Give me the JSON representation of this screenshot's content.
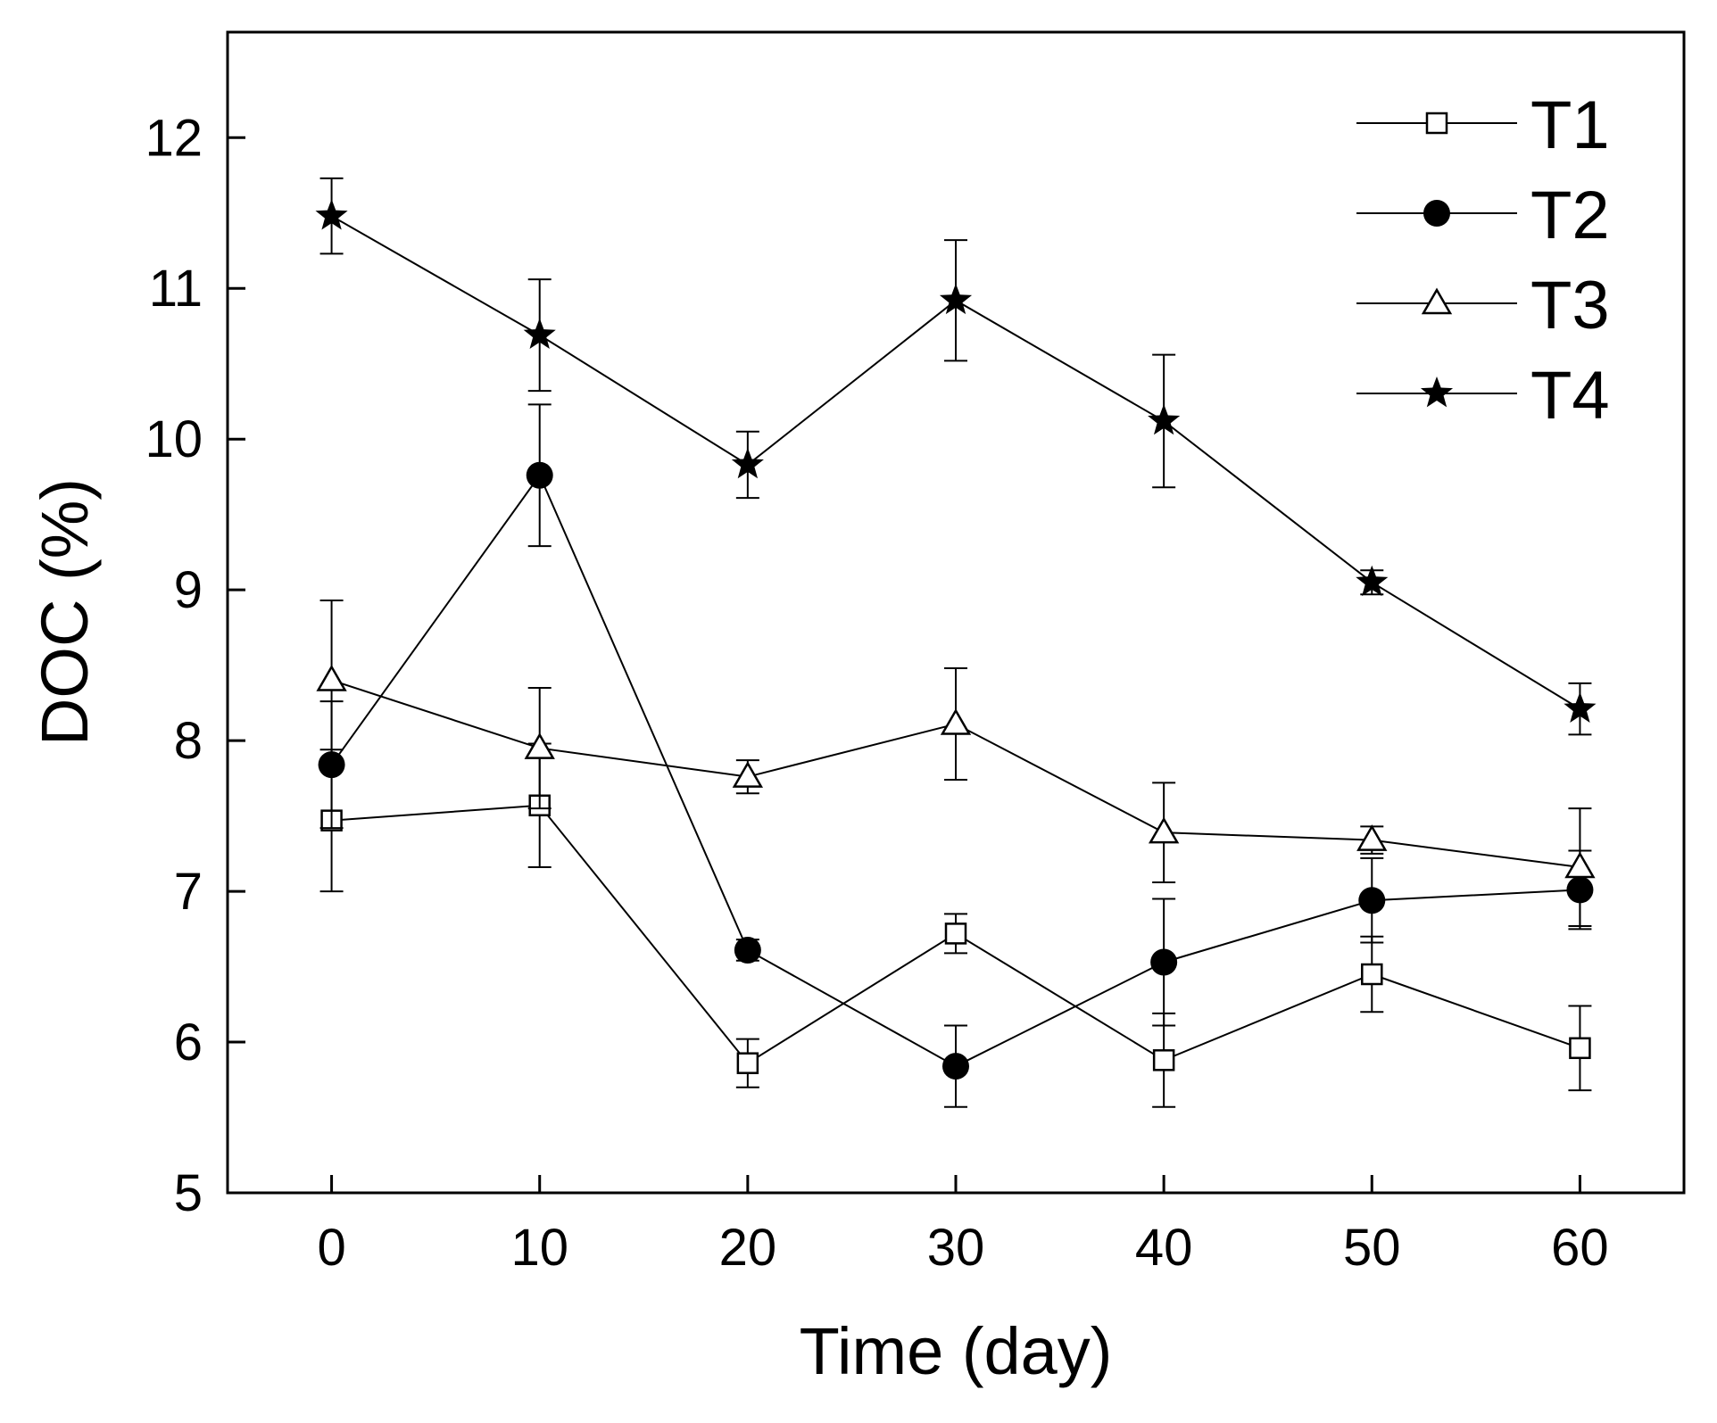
{
  "chart_data": {
    "type": "line",
    "title": "",
    "xlabel": "Time (day)",
    "ylabel": "DOC (%)",
    "x": [
      0,
      10,
      20,
      30,
      40,
      50,
      60
    ],
    "xlim": [
      -5,
      65
    ],
    "ylim": [
      5,
      12.7
    ],
    "xticks": [
      0,
      10,
      20,
      30,
      40,
      50,
      60
    ],
    "xtick_labels": [
      "0",
      "10",
      "20",
      "30",
      "40",
      "50",
      "60"
    ],
    "yticks": [
      5,
      6,
      7,
      8,
      9,
      10,
      11,
      12
    ],
    "ytick_labels": [
      "5",
      "6",
      "7",
      "8",
      "9",
      "10",
      "11",
      "12"
    ],
    "grid": false,
    "legend_position": "top-right",
    "series": [
      {
        "name": "T1",
        "marker": "open-square",
        "values": [
          7.47,
          7.57,
          5.86,
          6.72,
          5.88,
          6.45,
          5.96
        ],
        "errors": [
          0.47,
          0.41,
          0.16,
          0.13,
          0.31,
          0.25,
          0.28
        ]
      },
      {
        "name": "T2",
        "marker": "filled-circle",
        "values": [
          7.84,
          9.76,
          6.61,
          5.84,
          6.53,
          6.94,
          7.01
        ],
        "errors": [
          0.42,
          0.47,
          0.07,
          0.27,
          0.42,
          0.28,
          0.26
        ]
      },
      {
        "name": "T3",
        "marker": "open-triangle",
        "values": [
          8.4,
          7.95,
          7.76,
          8.11,
          7.39,
          7.34,
          7.16
        ],
        "errors": [
          0.53,
          0.4,
          0.11,
          0.37,
          0.33,
          0.09,
          0.39
        ]
      },
      {
        "name": "T4",
        "marker": "filled-star",
        "values": [
          11.48,
          10.69,
          9.83,
          10.92,
          10.12,
          9.05,
          8.21
        ],
        "errors": [
          0.25,
          0.37,
          0.22,
          0.4,
          0.44,
          0.08,
          0.17
        ]
      }
    ]
  }
}
